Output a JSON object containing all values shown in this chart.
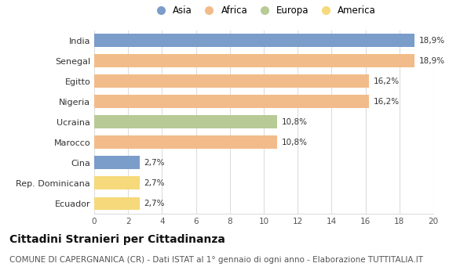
{
  "categories": [
    "India",
    "Senegal",
    "Egitto",
    "Nigeria",
    "Ucraina",
    "Marocco",
    "Cina",
    "Rep. Dominicana",
    "Ecuador"
  ],
  "values": [
    18.9,
    18.9,
    16.2,
    16.2,
    10.8,
    10.8,
    2.7,
    2.7,
    2.7
  ],
  "bar_colors": [
    "#7b9dc9",
    "#f2bc8a",
    "#f2bc8a",
    "#f2bc8a",
    "#b8ca96",
    "#f2bc8a",
    "#7b9dc9",
    "#f5d97a",
    "#f5d97a"
  ],
  "continent_labels": [
    "Asia",
    "Africa",
    "Europa",
    "America"
  ],
  "continent_colors": [
    "#7b9dc9",
    "#f2bc8a",
    "#b8ca96",
    "#f5d97a"
  ],
  "value_labels": [
    "18,9%",
    "18,9%",
    "16,2%",
    "16,2%",
    "10,8%",
    "10,8%",
    "2,7%",
    "2,7%",
    "2,7%"
  ],
  "xlim": [
    0,
    20
  ],
  "xticks": [
    0,
    2,
    4,
    6,
    8,
    10,
    12,
    14,
    16,
    18,
    20
  ],
  "title": "Cittadini Stranieri per Cittadinanza",
  "subtitle": "COMUNE DI CAPERGNANICA (CR) - Dati ISTAT al 1° gennaio di ogni anno - Elaborazione TUTTITALIA.IT",
  "title_fontsize": 10,
  "subtitle_fontsize": 7.5,
  "background_color": "#ffffff",
  "grid_color": "#dddddd",
  "bar_height": 0.65
}
